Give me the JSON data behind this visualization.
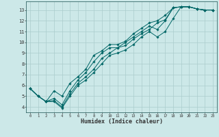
{
  "xlabel": "Humidex (Indice chaleur)",
  "bg_color": "#cce8e8",
  "grid_color": "#aacccc",
  "line_color": "#006666",
  "xlim": [
    -0.5,
    23.5
  ],
  "ylim": [
    3.5,
    13.8
  ],
  "xticks": [
    0,
    1,
    2,
    3,
    4,
    5,
    6,
    7,
    8,
    9,
    10,
    11,
    12,
    13,
    14,
    15,
    16,
    17,
    18,
    19,
    20,
    21,
    22,
    23
  ],
  "yticks": [
    4,
    5,
    6,
    7,
    8,
    9,
    10,
    11,
    12,
    13
  ],
  "lines": [
    {
      "x": [
        0,
        1,
        2,
        3,
        4,
        5,
        6,
        7,
        8,
        9,
        10,
        11,
        12,
        13,
        14,
        15,
        16,
        17,
        18,
        19,
        20,
        21,
        22,
        23
      ],
      "y": [
        5.7,
        5.0,
        4.5,
        4.6,
        4.0,
        5.2,
        6.2,
        6.8,
        7.5,
        8.5,
        9.0,
        9.5,
        10.0,
        10.5,
        11.0,
        11.5,
        11.2,
        12.0,
        13.2,
        13.3,
        13.3,
        13.1,
        13.0,
        13.0
      ]
    },
    {
      "x": [
        0,
        1,
        2,
        3,
        4,
        5,
        6,
        7,
        8,
        9,
        10,
        11,
        12,
        13,
        14,
        15,
        16,
        17,
        18,
        19,
        20,
        21,
        22,
        23
      ],
      "y": [
        5.7,
        5.0,
        4.5,
        4.8,
        4.2,
        5.5,
        6.5,
        7.2,
        8.2,
        9.0,
        9.5,
        9.5,
        9.7,
        10.3,
        10.8,
        11.2,
        11.8,
        12.1,
        13.2,
        13.3,
        13.3,
        13.1,
        13.0,
        13.0
      ]
    },
    {
      "x": [
        0,
        1,
        2,
        3,
        4,
        5,
        6,
        7,
        8,
        9,
        10,
        11,
        12,
        13,
        14,
        15,
        16,
        17,
        18,
        19,
        20,
        21,
        22,
        23
      ],
      "y": [
        5.7,
        5.0,
        4.5,
        4.5,
        3.9,
        5.0,
        6.0,
        6.5,
        7.2,
        8.0,
        8.8,
        9.0,
        9.3,
        9.8,
        10.5,
        11.0,
        10.5,
        11.0,
        12.2,
        13.3,
        13.3,
        13.1,
        13.0,
        13.0
      ]
    },
    {
      "x": [
        0,
        1,
        2,
        3,
        4,
        5,
        6,
        7,
        8,
        9,
        10,
        11,
        12,
        13,
        14,
        15,
        16,
        17,
        18,
        19,
        20,
        21,
        22,
        23
      ],
      "y": [
        5.7,
        5.0,
        4.5,
        5.5,
        5.0,
        6.2,
        6.8,
        7.5,
        8.8,
        9.2,
        9.8,
        9.8,
        10.1,
        10.8,
        11.3,
        11.8,
        12.0,
        12.5,
        13.2,
        13.3,
        13.3,
        13.1,
        13.0,
        13.0
      ]
    }
  ],
  "figsize": [
    3.2,
    2.0
  ],
  "dpi": 100
}
